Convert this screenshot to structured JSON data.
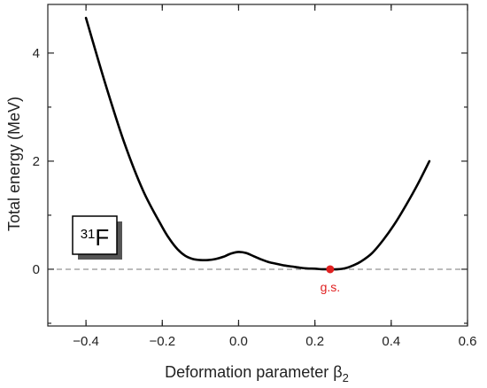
{
  "chart_data": {
    "type": "line",
    "title": "",
    "xlabel": "Deformation parameter β",
    "xlabel_subscript": "2",
    "ylabel": "Total energy (MeV)",
    "xlim": [
      -0.5,
      0.6
    ],
    "ylim": [
      -1.05,
      4.9
    ],
    "xticks": [
      -0.4,
      -0.2,
      0.0,
      0.2,
      0.4,
      0.6
    ],
    "xtick_labels": [
      "−0.4",
      "−0.2",
      "0.0",
      "0.2",
      "0.4",
      "0.6"
    ],
    "yticks": [
      0,
      2,
      4
    ],
    "ytick_labels": [
      "0",
      "2",
      "4"
    ],
    "grid": false,
    "series": [
      {
        "color": "#000000",
        "x": [
          -0.4,
          -0.35,
          -0.3,
          -0.25,
          -0.2,
          -0.18,
          -0.16,
          -0.14,
          -0.12,
          -0.1,
          -0.08,
          -0.06,
          -0.04,
          -0.02,
          0.0,
          0.02,
          0.04,
          0.06,
          0.08,
          0.1,
          0.12,
          0.14,
          0.16,
          0.18,
          0.2,
          0.22,
          0.24,
          0.26,
          0.28,
          0.3,
          0.32,
          0.35,
          0.38,
          0.41,
          0.44,
          0.47,
          0.5
        ],
        "y": [
          4.65,
          3.45,
          2.35,
          1.45,
          0.78,
          0.55,
          0.37,
          0.25,
          0.19,
          0.17,
          0.17,
          0.19,
          0.23,
          0.29,
          0.32,
          0.3,
          0.24,
          0.18,
          0.13,
          0.1,
          0.07,
          0.05,
          0.03,
          0.015,
          0.01,
          0.0,
          0.0,
          0.0,
          0.02,
          0.07,
          0.14,
          0.3,
          0.55,
          0.85,
          1.2,
          1.58,
          2.0
        ]
      }
    ],
    "reference_line": {
      "y": 0,
      "style": "dashed",
      "color": "#777777"
    },
    "annotations": [
      {
        "text": "g.s.",
        "x": 0.24,
        "y": 0.0,
        "color": "#e02020"
      }
    ],
    "nucleus_label": {
      "mass_number": "31",
      "symbol": "F"
    }
  }
}
